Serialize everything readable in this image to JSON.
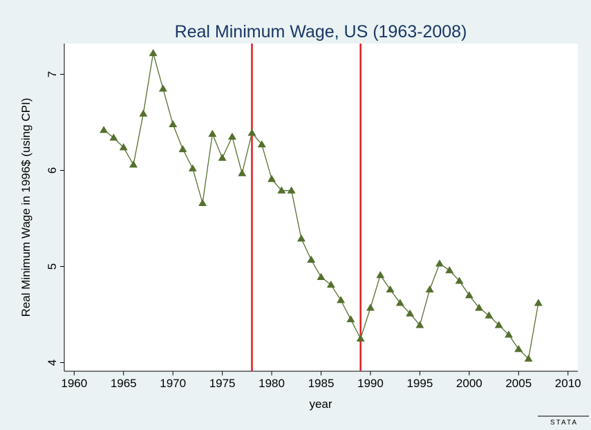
{
  "chart_data": {
    "type": "line",
    "title": "Real Minimum Wage, US (1963-2008)",
    "x_label": "year",
    "y_label": "Real Minimum Wage in 1996$ (using CPI)",
    "watermark": "STATA",
    "x": [
      1963,
      1964,
      1965,
      1966,
      1967,
      1968,
      1969,
      1970,
      1971,
      1972,
      1973,
      1974,
      1975,
      1976,
      1977,
      1978,
      1979,
      1980,
      1981,
      1982,
      1983,
      1984,
      1985,
      1986,
      1987,
      1988,
      1989,
      1990,
      1991,
      1992,
      1993,
      1994,
      1995,
      1996,
      1997,
      1998,
      1999,
      2000,
      2001,
      2002,
      2003,
      2004,
      2005,
      2006,
      2007
    ],
    "series": [
      {
        "name": "Real Minimum Wage",
        "color": "#55702e",
        "values": [
          6.42,
          6.34,
          6.24,
          6.06,
          6.59,
          7.22,
          6.85,
          6.48,
          6.22,
          6.02,
          5.66,
          6.38,
          6.13,
          6.35,
          5.97,
          6.39,
          6.27,
          5.91,
          5.79,
          5.79,
          5.29,
          5.07,
          4.89,
          4.81,
          4.65,
          4.45,
          4.25,
          4.57,
          4.91,
          4.76,
          4.62,
          4.51,
          4.39,
          4.76,
          5.03,
          4.96,
          4.85,
          4.7,
          4.57,
          4.49,
          4.39,
          4.29,
          4.14,
          4.04,
          4.62
        ]
      }
    ],
    "vlines": [
      1978,
      1989
    ],
    "vline_color": "#e31a1c",
    "xlim": [
      1959,
      2011
    ],
    "ylim": [
      3.91,
      7.32
    ],
    "xticks": [
      1960,
      1965,
      1970,
      1975,
      1980,
      1985,
      1990,
      1995,
      2000,
      2005,
      2010
    ],
    "yticks": [
      4,
      5,
      6,
      7
    ]
  }
}
